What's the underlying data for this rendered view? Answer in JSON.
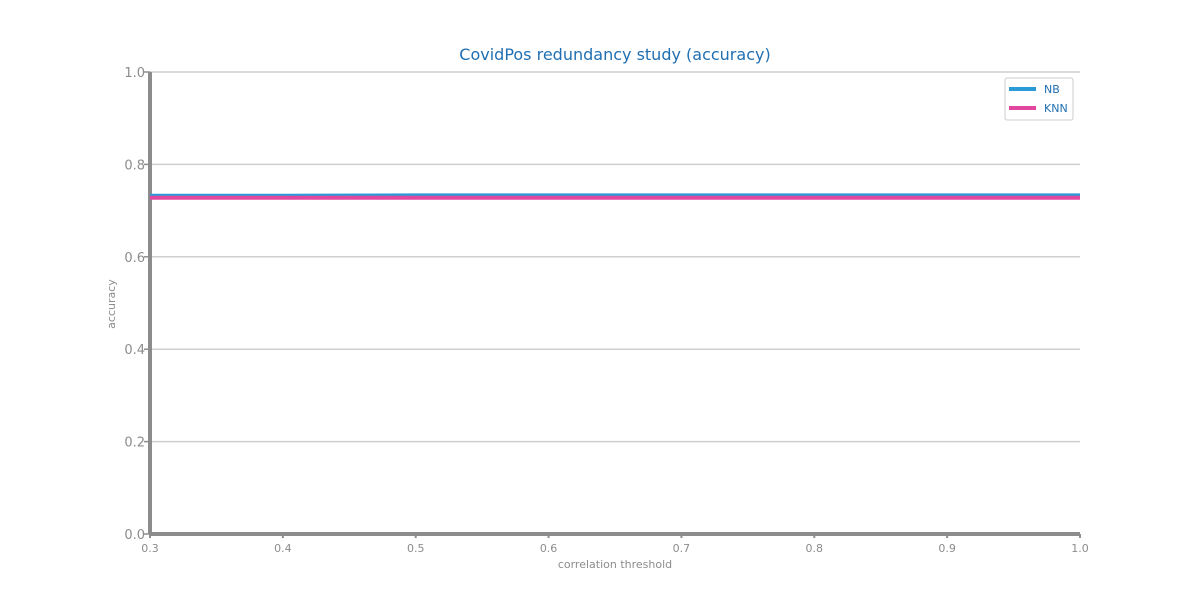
{
  "chart_data": {
    "type": "line",
    "title": "CovidPos redundancy study (accuracy)",
    "xlabel": "correlation threshold",
    "ylabel": "accuracy",
    "xlim": [
      0.3,
      1.0
    ],
    "ylim": [
      0.0,
      1.0
    ],
    "x_ticks": [
      "0.3",
      "0.4",
      "0.5",
      "0.6",
      "0.7",
      "0.8",
      "0.9",
      "1.0"
    ],
    "y_ticks": [
      "0.0",
      "0.2",
      "0.4",
      "0.6",
      "0.8",
      "1.0"
    ],
    "grid": "horizontal",
    "legend_position": "top-right",
    "x": [
      0.3,
      0.4,
      0.5,
      0.6,
      0.7,
      0.8,
      0.9,
      1.0
    ],
    "series": [
      {
        "name": "NB",
        "color": "#2a9bd6",
        "values": [
          0.732,
          0.732,
          0.733,
          0.733,
          0.733,
          0.733,
          0.733,
          0.733
        ]
      },
      {
        "name": "KNN",
        "color": "#e2479f",
        "values": [
          0.728,
          0.728,
          0.728,
          0.728,
          0.728,
          0.728,
          0.728,
          0.728
        ]
      }
    ]
  }
}
